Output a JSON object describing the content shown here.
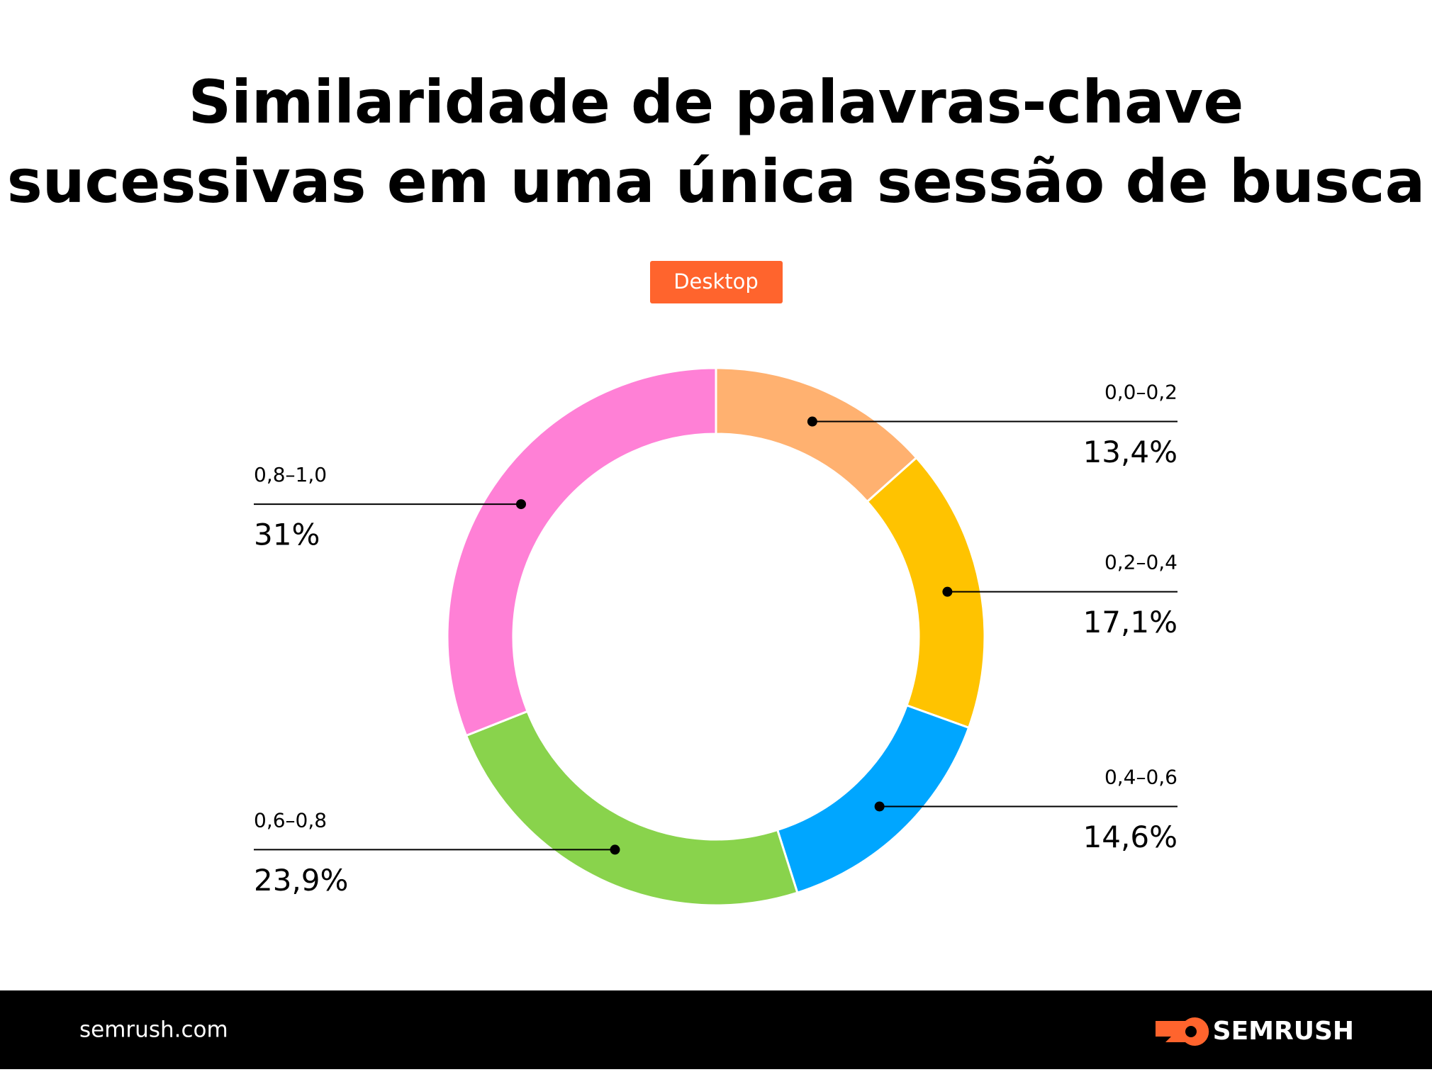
{
  "chart_data": {
    "type": "donut",
    "title": [
      "Similaridade de palavras-chave",
      "sucessivas em uma única sessão de busca"
    ],
    "subtitle": "Desktop",
    "categories": [
      "0,0–0,2",
      "0,2–0,4",
      "0,4–0,6",
      "0,6–0,8",
      "0,8–1,0"
    ],
    "values": [
      13.4,
      17.1,
      14.6,
      23.9,
      31
    ],
    "value_labels": [
      "13,4%",
      "17,1%",
      "14,6%",
      "23,9%",
      "31%"
    ],
    "colors": [
      "#ffb170",
      "#ffc300",
      "#00a6ff",
      "#89d34c",
      "#ff80d6"
    ]
  },
  "footer": {
    "site": "semrush.com",
    "brand": "SEMRUSH"
  }
}
